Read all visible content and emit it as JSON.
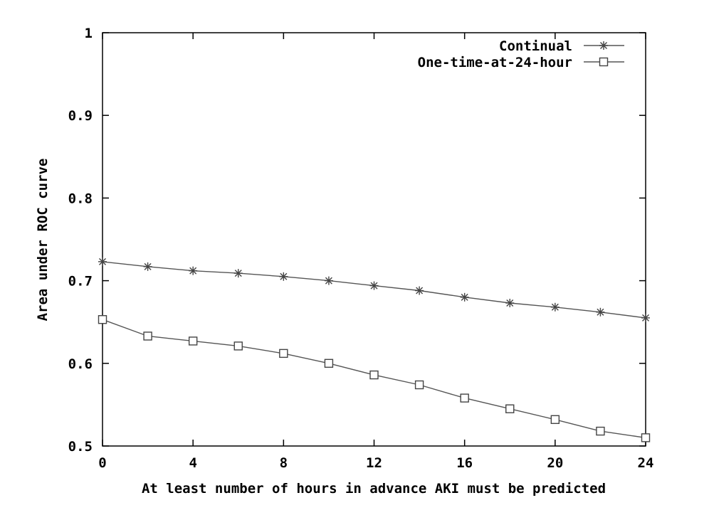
{
  "chart_data": {
    "type": "line",
    "xlabel": "At least number of hours in advance AKI must be predicted",
    "ylabel": "Area under ROC curve",
    "xlim": [
      0,
      24
    ],
    "ylim": [
      0.5,
      1.0
    ],
    "x_ticks": [
      0,
      4,
      8,
      12,
      16,
      20,
      24
    ],
    "x_tick_labels": [
      "0",
      "4",
      "8",
      "12",
      "16",
      "20",
      "24"
    ],
    "y_ticks": [
      0.5,
      0.6,
      0.7,
      0.8,
      0.9,
      1.0
    ],
    "y_tick_labels": [
      "0.5",
      "0.6",
      "0.7",
      "0.8",
      "0.9",
      "1"
    ],
    "grid": false,
    "legend_position": "top-right",
    "x": [
      0,
      2,
      4,
      6,
      8,
      10,
      12,
      14,
      16,
      18,
      20,
      22,
      24
    ],
    "series": [
      {
        "name": "Continual",
        "marker": "asterisk",
        "values": [
          0.723,
          0.717,
          0.712,
          0.709,
          0.705,
          0.7,
          0.694,
          0.688,
          0.68,
          0.673,
          0.668,
          0.662,
          0.655
        ]
      },
      {
        "name": "One-time-at-24-hour",
        "marker": "square",
        "values": [
          0.653,
          0.633,
          0.627,
          0.621,
          0.612,
          0.6,
          0.586,
          0.574,
          0.558,
          0.545,
          0.532,
          0.518,
          0.51
        ]
      }
    ]
  }
}
